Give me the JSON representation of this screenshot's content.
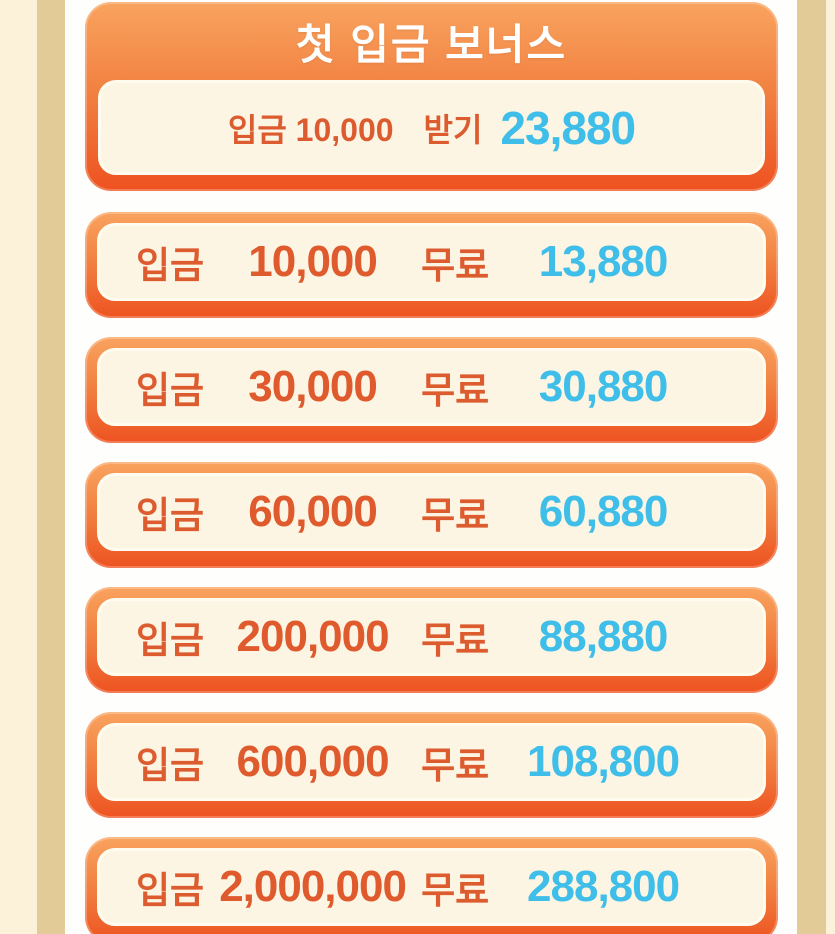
{
  "page": {
    "title": "첫 입금 보너스",
    "header_row": {
      "deposit_label": "입금",
      "deposit_amount": "10,000",
      "claim_label": "받기",
      "bonus_amount": "23,880"
    },
    "tier_rows": [
      {
        "deposit_label": "입금",
        "deposit_amount": "10,000",
        "free_label": "무료",
        "bonus_amount": "13,880"
      },
      {
        "deposit_label": "입금",
        "deposit_amount": "30,000",
        "free_label": "무료",
        "bonus_amount": "30,880"
      },
      {
        "deposit_label": "입금",
        "deposit_amount": "60,000",
        "free_label": "무료",
        "bonus_amount": "60,880"
      },
      {
        "deposit_label": "입금",
        "deposit_amount": "200,000",
        "free_label": "무료",
        "bonus_amount": "88,880"
      },
      {
        "deposit_label": "입금",
        "deposit_amount": "600,000",
        "free_label": "무료",
        "bonus_amount": "108,800"
      },
      {
        "deposit_label": "입금",
        "deposit_amount": "2,000,000",
        "free_label": "무료",
        "bonus_amount": "288,800"
      }
    ],
    "colors": {
      "card_gradient_top": "#F9A35F",
      "card_gradient_bottom": "#EE5220",
      "panel_cream": "#FCF5E3",
      "panel_stroke": "#FFFCEF",
      "deposit_text_orange": "#DC5C30",
      "bonus_text_cyan": "#3FBEE9",
      "title_text": "#FFFFFF",
      "side_stripe_tan": "#E2CB96",
      "side_stripe_cream": "#FBF2D9"
    }
  }
}
